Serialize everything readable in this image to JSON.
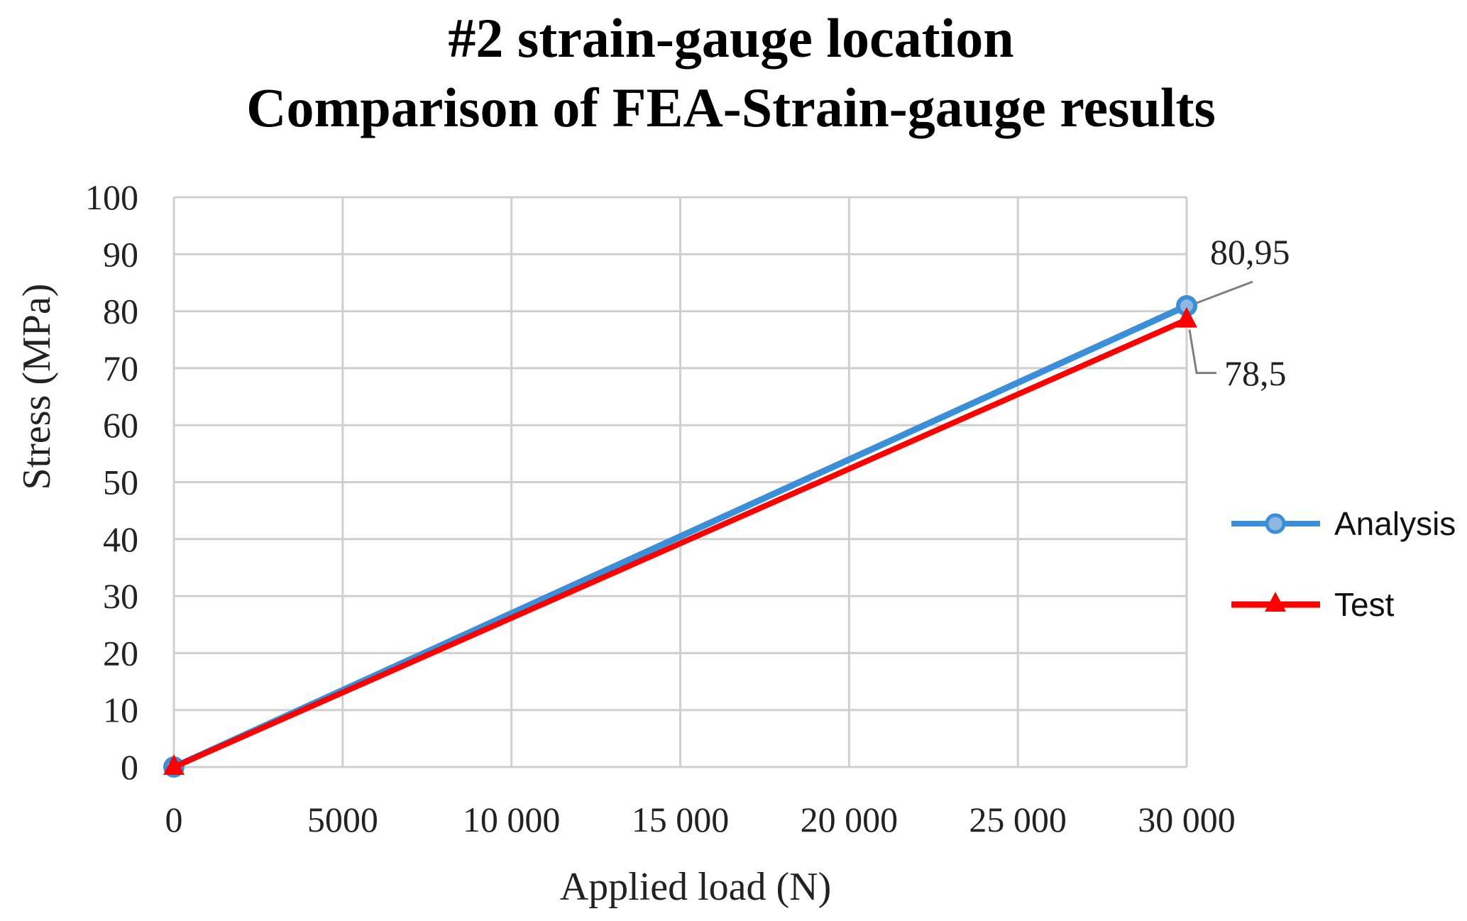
{
  "chart_data": {
    "type": "line",
    "title": [
      "#2 strain-gauge location",
      "Comparison of FEA-Strain-gauge results"
    ],
    "xlabel": "Applied load  (N)",
    "ylabel": "Stress  (MPa)",
    "xlim": [
      0,
      30000
    ],
    "ylim": [
      0,
      100
    ],
    "x_ticks": [
      0,
      5000,
      10000,
      15000,
      20000,
      25000,
      30000
    ],
    "x_tick_labels": [
      "0",
      "5000",
      "10 000",
      "15 000",
      "20 000",
      "25 000",
      "30 000"
    ],
    "y_ticks": [
      0,
      10,
      20,
      30,
      40,
      50,
      60,
      70,
      80,
      90,
      100
    ],
    "y_tick_labels": [
      "0",
      "10",
      "20",
      "30",
      "40",
      "50",
      "60",
      "70",
      "80",
      "90",
      "100"
    ],
    "grid": true,
    "legend_position": "right",
    "series": [
      {
        "name": "Analysis",
        "color": "#3b8fd9",
        "marker": "circle",
        "x": [
          0,
          30000
        ],
        "y": [
          0,
          80.95
        ]
      },
      {
        "name": "Test",
        "color": "#ff0000",
        "marker": "triangle",
        "x": [
          0,
          30000
        ],
        "y": [
          0,
          78.5
        ]
      }
    ],
    "annotations": [
      {
        "series": "Analysis",
        "x": 30000,
        "y": 80.95,
        "text": "80,95"
      },
      {
        "series": "Test",
        "x": 30000,
        "y": 78.5,
        "text": "78,5"
      }
    ]
  }
}
